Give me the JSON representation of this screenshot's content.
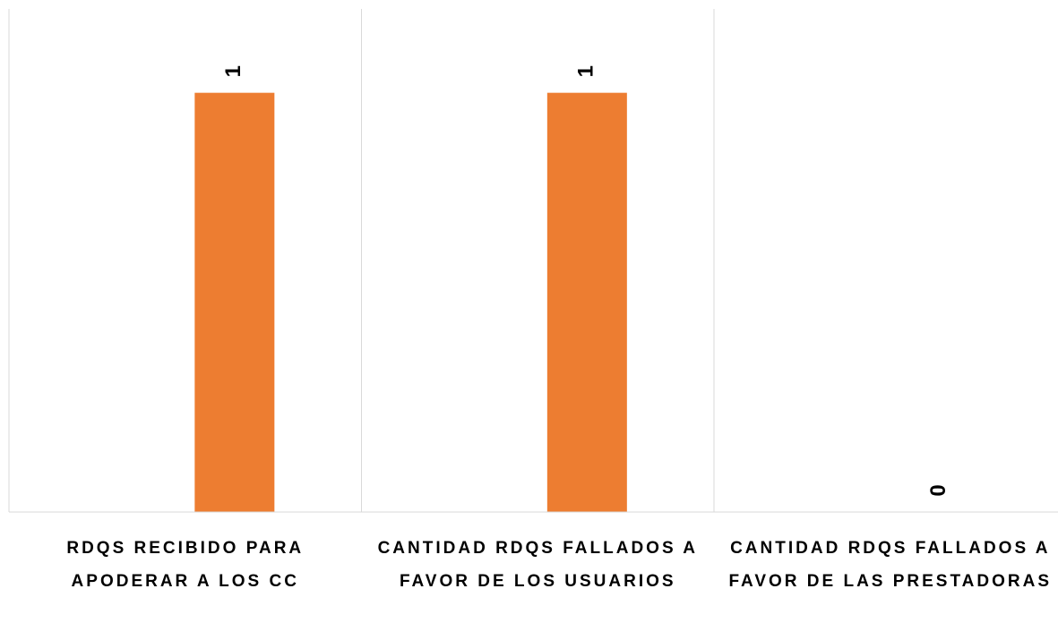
{
  "chart_data": {
    "type": "bar",
    "categories": [
      "RDQS RECIBIDO PARA APODERAR A LOS CC",
      "CANTIDAD RDQS FALLADOS A FAVOR DE LOS USUARIOS",
      "CANTIDAD RDQS FALLADOS A FAVOR DE LAS PRESTADORAS"
    ],
    "values": [
      1,
      1,
      0
    ],
    "color": "#ed7d31",
    "ylim": [
      0,
      1.2
    ]
  }
}
